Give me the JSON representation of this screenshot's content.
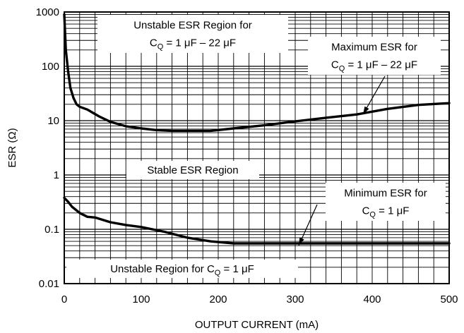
{
  "chart_data": {
    "type": "line",
    "xlabel": "OUTPUT CURRENT (mA)",
    "ylabel": "ESR (Ω)",
    "xlim": [
      0,
      500
    ],
    "ylim": [
      0.01,
      1000
    ],
    "yscale": "log",
    "grid": true,
    "x_ticks": [
      0,
      100,
      200,
      300,
      400,
      500
    ],
    "x_tick_labels": [
      "0",
      "100",
      "200",
      "300",
      "400",
      "500"
    ],
    "y_ticks": [
      0.01,
      0.1,
      1,
      10,
      100,
      1000
    ],
    "y_tick_labels": [
      "0.01",
      "0.1",
      "1",
      "10",
      "100",
      "1000"
    ],
    "series": [
      {
        "x": [
          0,
          2,
          5,
          8,
          12,
          16,
          20,
          30,
          45,
          60,
          80,
          100,
          120,
          140,
          160,
          190,
          220,
          260,
          300,
          340,
          380,
          420,
          460,
          500
        ],
        "y": [
          900,
          200,
          80,
          40,
          26,
          20,
          18,
          16,
          12,
          9.5,
          7.9,
          7.2,
          6.7,
          6.5,
          6.5,
          6.5,
          7.2,
          8.2,
          9.7,
          11.3,
          13,
          16.5,
          19.5,
          21
        ]
      },
      {
        "x": [
          0,
          5,
          10,
          20,
          30,
          40,
          60,
          80,
          100,
          130,
          160,
          190,
          220,
          260,
          300,
          400,
          500
        ],
        "y": [
          0.38,
          0.32,
          0.26,
          0.2,
          0.17,
          0.165,
          0.135,
          0.12,
          0.11,
          0.09,
          0.07,
          0.06,
          0.055,
          0.055,
          0.055,
          0.055,
          0.055
        ]
      }
    ],
    "annotations": [
      {
        "id": "unstable_top",
        "lines": [
          {
            "parts": [
              {
                "t": "Unstable ESR Region for"
              }
            ]
          },
          {
            "parts": [
              {
                "t": "C"
              },
              {
                "t": "Q",
                "sub": true
              },
              {
                "t": " = 1 μF – 22 μF"
              }
            ]
          }
        ]
      },
      {
        "id": "max_esr",
        "lines": [
          {
            "parts": [
              {
                "t": "Maximum ESR for"
              }
            ]
          },
          {
            "parts": [
              {
                "t": "C"
              },
              {
                "t": "Q",
                "sub": true
              },
              {
                "t": " = 1 μF – 22 μF"
              }
            ]
          }
        ]
      },
      {
        "id": "stable",
        "lines": [
          {
            "parts": [
              {
                "t": "Stable ESR Region"
              }
            ]
          }
        ]
      },
      {
        "id": "min_esr",
        "lines": [
          {
            "parts": [
              {
                "t": "Minimum ESR for"
              }
            ]
          },
          {
            "parts": [
              {
                "t": "C"
              },
              {
                "t": "Q",
                "sub": true
              },
              {
                "t": " = 1 μF"
              }
            ]
          }
        ]
      },
      {
        "id": "unstable_bottom",
        "lines": [
          {
            "parts": [
              {
                "t": "Unstable Region for C"
              },
              {
                "t": "Q",
                "sub": true
              },
              {
                "t": " = 1 μF"
              }
            ]
          }
        ]
      }
    ]
  }
}
